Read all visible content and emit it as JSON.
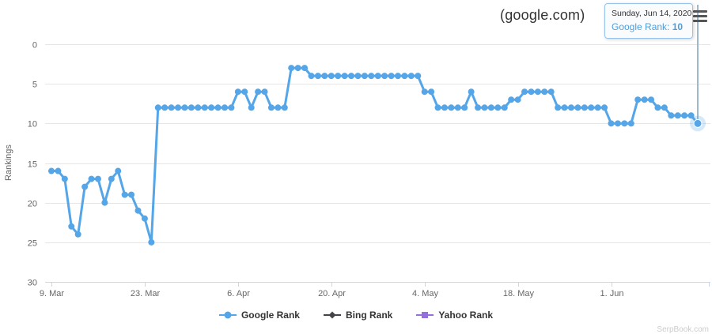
{
  "header": {
    "title": "(google.com)"
  },
  "tooltip": {
    "date": "Sunday, Jun 14, 2020",
    "series_label": "Google Rank:",
    "value": "10"
  },
  "watermark": "SerpBook.com",
  "colors": {
    "google": "#54a6e8",
    "bing": "#434348",
    "yahoo": "#9370db",
    "grid": "#e6e6e6",
    "axis_line": "#ccd6eb",
    "tick_label": "#666666",
    "crosshair": "#9fb8cf",
    "tooltip_border": "#96c3ea",
    "tooltip_text": "#4d9fdd"
  },
  "legend": [
    {
      "label": "Google Rank",
      "marker": "circle",
      "color": "#54a6e8"
    },
    {
      "label": "Bing Rank",
      "marker": "diamond",
      "color": "#434348"
    },
    {
      "label": "Yahoo Rank",
      "marker": "square",
      "color": "#9370db"
    }
  ],
  "chart_data": {
    "type": "line",
    "title": "(google.com)",
    "xlabel": "",
    "ylabel": "Rankings",
    "y_inverted": true,
    "ylim": [
      0,
      30
    ],
    "yticks": [
      0,
      5,
      10,
      15,
      20,
      25,
      30
    ],
    "xticks": [
      "9. Mar",
      "23. Mar",
      "6. Apr",
      "20. Apr",
      "4. May",
      "18. May",
      "1. Jun"
    ],
    "xtick_day_offsets": [
      0,
      14,
      28,
      42,
      56,
      70,
      84
    ],
    "x_start_date": "2020-03-09",
    "x_end_date": "2020-06-14",
    "x_interval": "daily",
    "grid": "horizontal",
    "legend_position": "bottom",
    "series": [
      {
        "name": "Google Rank",
        "color": "#54a6e8",
        "marker": "circle",
        "values": [
          16,
          16,
          17,
          23,
          24,
          18,
          17,
          17,
          20,
          17,
          16,
          19,
          19,
          21,
          22,
          25,
          8,
          8,
          8,
          8,
          8,
          8,
          8,
          8,
          8,
          8,
          8,
          8,
          6,
          6,
          8,
          6,
          6,
          8,
          8,
          8,
          3,
          3,
          3,
          4,
          4,
          4,
          4,
          4,
          4,
          4,
          4,
          4,
          4,
          4,
          4,
          4,
          4,
          4,
          4,
          4,
          6,
          6,
          8,
          8,
          8,
          8,
          8,
          6,
          8,
          8,
          8,
          8,
          8,
          7,
          7,
          6,
          6,
          6,
          6,
          6,
          8,
          8,
          8,
          8,
          8,
          8,
          8,
          8,
          10,
          10,
          10,
          10,
          7,
          7,
          7,
          8,
          8,
          9,
          9,
          9,
          9,
          10
        ]
      },
      {
        "name": "Bing Rank",
        "color": "#434348",
        "marker": "diamond",
        "values": []
      },
      {
        "name": "Yahoo Rank",
        "color": "#9370db",
        "marker": "square",
        "values": []
      }
    ],
    "highlight": {
      "date": "2020-06-14",
      "day_offset": 97,
      "value": 10,
      "series": "Google Rank"
    }
  }
}
